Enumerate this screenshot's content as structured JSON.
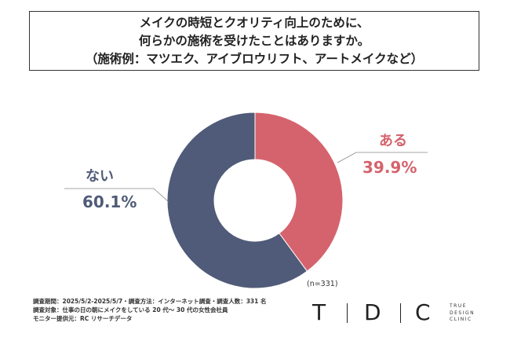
{
  "title": {
    "line1": "メイクの時短とクオリティ向上のために、",
    "line2": "何らかの施術を受けたことはありますか。",
    "line3": "（施術例：マツエク、アイブロウリフト、アートメイクなど）"
  },
  "chart_data": {
    "type": "pie",
    "donut": true,
    "categories": [
      "ある",
      "ない"
    ],
    "values": [
      39.9,
      60.1
    ],
    "value_labels": [
      "39.9%",
      "60.1%"
    ],
    "colors": [
      "#d5636d",
      "#4f5b78"
    ],
    "sample_size": "(n=331)"
  },
  "footnotes": [
    "調査期間：2025/5/2-2025/5/7・調査方法：インターネット調査・調査人数：331 名",
    "調査対象：仕事の日の朝にメイクをしている 20 代〜 30 代の女性会社員",
    "モニター提供元：RC リサーチデータ"
  ],
  "logo": {
    "letters": [
      "T",
      "D",
      "C"
    ],
    "sub_lines": [
      "TRUE",
      "DESIGN",
      "CLINIC"
    ]
  }
}
